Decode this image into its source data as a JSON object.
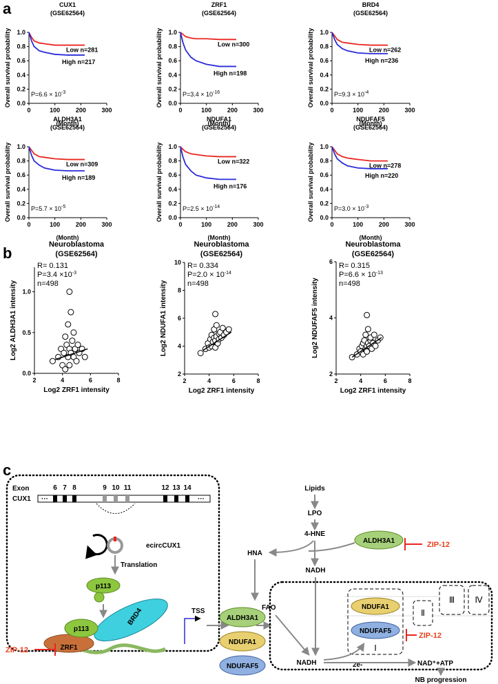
{
  "panel_labels": [
    "a",
    "b",
    "c"
  ],
  "chart_data": [
    {
      "type": "line",
      "title": "CUX1",
      "subtitle": "(GSE62564)",
      "ylabel": "Overall survival probability",
      "xlabel": "(Month)",
      "xlim": [
        0,
        300
      ],
      "xticks": [
        0,
        100,
        200,
        300
      ],
      "ylim": [
        0,
        1
      ],
      "yticks": [
        {
          "value": 0,
          "label": "0.0"
        },
        0.2,
        0.4,
        0.6,
        0.8,
        {
          "value": 1,
          "label": "1.0"
        }
      ],
      "x": [
        0,
        10,
        20,
        40,
        60,
        100,
        150,
        215
      ],
      "series": [
        {
          "name": "Low n=281",
          "color": "#e8251f",
          "values": [
            1,
            0.93,
            0.88,
            0.85,
            0.84,
            0.82,
            0.82,
            0.82
          ]
        },
        {
          "name": "High n=217",
          "color": "#2a2ad8",
          "values": [
            1,
            0.88,
            0.8,
            0.74,
            0.72,
            0.69,
            0.68,
            0.68
          ]
        }
      ],
      "p_label": "P=6.6 × 10",
      "p_exp": "-3"
    },
    {
      "type": "line",
      "title": "ZRF1",
      "subtitle": "(GSE62564)",
      "ylabel": "Overall survival probability",
      "xlabel": "(Month)",
      "xlim": [
        0,
        300
      ],
      "xticks": [
        0,
        100,
        200,
        300
      ],
      "ylim": [
        0,
        1
      ],
      "yticks": [
        {
          "value": 0,
          "label": "0.0"
        },
        0.2,
        0.4,
        0.6,
        0.8,
        {
          "value": 1,
          "label": "1.0"
        }
      ],
      "x": [
        0,
        10,
        20,
        40,
        60,
        100,
        150,
        215
      ],
      "series": [
        {
          "name": "Low n=300",
          "color": "#e8251f",
          "values": [
            1,
            0.97,
            0.94,
            0.92,
            0.91,
            0.91,
            0.9,
            0.9
          ]
        },
        {
          "name": "High n=198",
          "color": "#2a2ad8",
          "values": [
            1,
            0.85,
            0.75,
            0.65,
            0.6,
            0.55,
            0.52,
            0.52
          ]
        }
      ],
      "p_label": "P=3.4 × 10",
      "p_exp": "-16"
    },
    {
      "type": "line",
      "title": "BRD4",
      "subtitle": "(GSE62564)",
      "ylabel": "Overall survival probability",
      "xlabel": "(Month)",
      "xlim": [
        0,
        300
      ],
      "xticks": [
        0,
        100,
        200,
        300
      ],
      "ylim": [
        0,
        1
      ],
      "yticks": [
        {
          "value": 0,
          "label": "0.0"
        },
        0.2,
        0.4,
        0.6,
        0.8,
        {
          "value": 1,
          "label": "1.0"
        }
      ],
      "x": [
        0,
        10,
        20,
        40,
        60,
        100,
        150,
        215
      ],
      "series": [
        {
          "name": "Low n=262",
          "color": "#e8251f",
          "values": [
            1,
            0.95,
            0.9,
            0.86,
            0.85,
            0.83,
            0.82,
            0.82
          ]
        },
        {
          "name": "High n=236",
          "color": "#2a2ad8",
          "values": [
            1,
            0.9,
            0.83,
            0.77,
            0.74,
            0.71,
            0.7,
            0.7
          ]
        }
      ],
      "p_label": "P=9.3 × 10",
      "p_exp": "-4"
    },
    {
      "type": "line",
      "title": "ALDH3A1",
      "subtitle": "(GSE62564)",
      "ylabel": "Overall survival probability",
      "xlabel": "(Month)",
      "xlim": [
        0,
        300
      ],
      "xticks": [
        0,
        100,
        200,
        300
      ],
      "ylim": [
        0,
        1
      ],
      "yticks": [
        {
          "value": 0,
          "label": "0.0"
        },
        0.2,
        0.4,
        0.6,
        0.8,
        {
          "value": 1,
          "label": "1.0"
        }
      ],
      "x": [
        0,
        10,
        20,
        40,
        60,
        100,
        150,
        215
      ],
      "series": [
        {
          "name": "Low n=309",
          "color": "#e8251f",
          "values": [
            1,
            0.95,
            0.9,
            0.86,
            0.85,
            0.83,
            0.82,
            0.82
          ]
        },
        {
          "name": "High n=189",
          "color": "#2a2ad8",
          "values": [
            1,
            0.88,
            0.8,
            0.74,
            0.7,
            0.67,
            0.66,
            0.66
          ]
        }
      ],
      "p_label": "P=5.7 × 10",
      "p_exp": "-5"
    },
    {
      "type": "line",
      "title": "NDUFA1",
      "subtitle": "(GSE62564)",
      "ylabel": "Overall survival probability",
      "xlabel": "(Month)",
      "xlim": [
        0,
        300
      ],
      "xticks": [
        0,
        100,
        200,
        300
      ],
      "ylim": [
        0,
        1
      ],
      "yticks": [
        {
          "value": 0,
          "label": "0.0"
        },
        0.2,
        0.4,
        0.6,
        0.8,
        {
          "value": 1,
          "label": "1.0"
        }
      ],
      "x": [
        0,
        10,
        20,
        40,
        60,
        100,
        150,
        215
      ],
      "series": [
        {
          "name": "Low n=322",
          "color": "#e8251f",
          "values": [
            1,
            0.96,
            0.93,
            0.9,
            0.89,
            0.87,
            0.86,
            0.86
          ]
        },
        {
          "name": "High n=176",
          "color": "#2a2ad8",
          "values": [
            1,
            0.85,
            0.75,
            0.66,
            0.6,
            0.56,
            0.54,
            0.54
          ]
        }
      ],
      "p_label": "P=2.5 × 10",
      "p_exp": "-14"
    },
    {
      "type": "line",
      "title": "NDUFAF5",
      "subtitle": "(GSE62564)",
      "ylabel": "Overall survival probability",
      "xlabel": "(Month)",
      "xlim": [
        0,
        300
      ],
      "xticks": [
        0,
        100,
        200,
        300
      ],
      "ylim": [
        0,
        1
      ],
      "yticks": [
        {
          "value": 0,
          "label": "0.0"
        },
        0.2,
        0.4,
        0.6,
        0.8,
        {
          "value": 1,
          "label": "1.0"
        }
      ],
      "x": [
        0,
        10,
        20,
        40,
        60,
        100,
        150,
        215
      ],
      "series": [
        {
          "name": "Low n=278",
          "color": "#e8251f",
          "values": [
            1,
            0.95,
            0.9,
            0.86,
            0.84,
            0.82,
            0.8,
            0.8
          ]
        },
        {
          "name": "High n=220",
          "color": "#2a2ad8",
          "values": [
            1,
            0.9,
            0.83,
            0.77,
            0.73,
            0.7,
            0.69,
            0.69
          ]
        }
      ],
      "p_label": "P=3.0 × 10",
      "p_exp": "-3"
    },
    {
      "type": "scatter",
      "title": "Neuroblastoma",
      "subtitle": "(GSE62564)",
      "xlabel": "Log2 ZRF1 intensity",
      "ylabel": "Log2 ALDH3A1 intensity",
      "xlim": [
        2,
        8
      ],
      "xticks": [
        2,
        4,
        6,
        8
      ],
      "ylim": [
        0,
        1.3
      ],
      "yticks": [
        {
          "value": 0,
          "label": "0.0"
        },
        0.5,
        {
          "value": 1,
          "label": "1.0"
        }
      ],
      "x": [
        3.3,
        3.7,
        3.9,
        4.0,
        4.1,
        4.2,
        4.2,
        4.3,
        4.4,
        4.4,
        4.5,
        4.5,
        4.6,
        4.6,
        4.7,
        4.8,
        4.8,
        4.9,
        5.0,
        5.1,
        5.2,
        5.4,
        5.6,
        4.5
      ],
      "values": [
        0.15,
        0.2,
        0.3,
        0.1,
        0.25,
        0.45,
        0.05,
        0.35,
        0.2,
        0.6,
        0.3,
        0.1,
        0.25,
        0.75,
        0.4,
        0.2,
        0.5,
        0.3,
        0.15,
        0.35,
        0.25,
        0.3,
        0.2,
        1.0
      ],
      "fit": {
        "x": [
          3.5,
          5.8
        ],
        "values": [
          0.17,
          0.3
        ]
      },
      "r_label": "R= 0.131",
      "p_label": "P=3.4 ×10",
      "p_exp": "-3",
      "n_label": "n=498"
    },
    {
      "type": "scatter",
      "title": "Neuroblastoma",
      "subtitle": "(GSE62564)",
      "xlabel": "Log2 ZRF1 intensity",
      "ylabel": "Log2 NDUFA1 intensity",
      "xlim": [
        2,
        8
      ],
      "xticks": [
        2,
        4,
        6,
        8
      ],
      "ylim": [
        2,
        10
      ],
      "yticks": [
        2,
        4,
        6,
        8,
        10
      ],
      "x": [
        3.3,
        3.7,
        3.9,
        4.0,
        4.1,
        4.2,
        4.2,
        4.3,
        4.4,
        4.4,
        4.5,
        4.5,
        4.6,
        4.6,
        4.7,
        4.8,
        4.8,
        4.9,
        5.0,
        5.1,
        5.2,
        5.4,
        5.6,
        4.5
      ],
      "values": [
        3.5,
        3.8,
        4.2,
        3.9,
        4.5,
        4.0,
        4.8,
        4.3,
        4.6,
        5.2,
        4.4,
        3.9,
        4.7,
        5.5,
        4.2,
        4.9,
        4.5,
        5.0,
        4.6,
        5.3,
        4.8,
        5.0,
        5.2,
        6.3
      ],
      "fit": {
        "x": [
          3.5,
          5.8
        ],
        "values": [
          3.7,
          5.0
        ]
      },
      "r_label": "R= 0.334",
      "p_label": "P=2.0 × 10",
      "p_exp": "-14",
      "n_label": "n=498"
    },
    {
      "type": "scatter",
      "title": "Neuroblastoma",
      "subtitle": "(GSE62564)",
      "xlabel": "Log2 ZRF1 intensity",
      "ylabel": "Log2 NDUFAF5 intensity",
      "xlim": [
        2,
        8
      ],
      "xticks": [
        2,
        4,
        6,
        8
      ],
      "ylim": [
        2,
        6
      ],
      "yticks": [
        2,
        4,
        6
      ],
      "x": [
        3.3,
        3.7,
        3.9,
        4.0,
        4.1,
        4.2,
        4.2,
        4.3,
        4.4,
        4.4,
        4.5,
        4.5,
        4.6,
        4.6,
        4.7,
        4.8,
        4.8,
        4.9,
        5.0,
        5.1,
        5.2,
        5.4,
        5.6,
        4.5
      ],
      "values": [
        2.6,
        2.7,
        2.9,
        2.8,
        3.0,
        3.1,
        2.7,
        3.2,
        2.9,
        3.4,
        3.0,
        2.8,
        3.1,
        3.6,
        3.0,
        3.2,
        3.3,
        2.9,
        3.1,
        3.4,
        3.0,
        3.2,
        3.3,
        4.1
      ],
      "fit": {
        "x": [
          3.3,
          5.7
        ],
        "values": [
          2.6,
          3.3
        ]
      },
      "r_label": "R= 0.315",
      "p_label": "P=6.6 × 10",
      "p_exp": "-13",
      "n_label": "n=498"
    }
  ],
  "diagram": {
    "exon_label": "Exon",
    "gene_label": "CUX1",
    "exons": [
      "6",
      "7",
      "8",
      "9",
      "10",
      "11",
      "12",
      "13",
      "14"
    ],
    "exon_dots": [
      "···",
      "···"
    ],
    "circrna": "ecircCUX1",
    "translation": "Translation",
    "protein": "p113",
    "complex": [
      "p113",
      "BRD4",
      "ZRF1"
    ],
    "tss": "TSS",
    "inhibitors": [
      "ZIP-12",
      "ZIP-12",
      "ZIP-12"
    ],
    "targets": [
      "ALDH3A1",
      "NDUFA1",
      "NDUFAF5"
    ],
    "pathway": {
      "lipids": "Lipids",
      "lpo": "LPO",
      "hne": "4-HNE",
      "enzyme": "ALDH3A1",
      "hna": "HNA",
      "nadh_top": "NADH",
      "fao": "FAO",
      "nadh_bottom": "NADH",
      "complex_i": [
        "NDUFA1",
        "NDUFAF5"
      ],
      "numerals": [
        "Ⅰ",
        "Ⅱ",
        "Ⅲ",
        "Ⅳ"
      ],
      "electrons": "2e-",
      "products": "NAD⁺+ATP",
      "outcome": "NB progression"
    }
  }
}
